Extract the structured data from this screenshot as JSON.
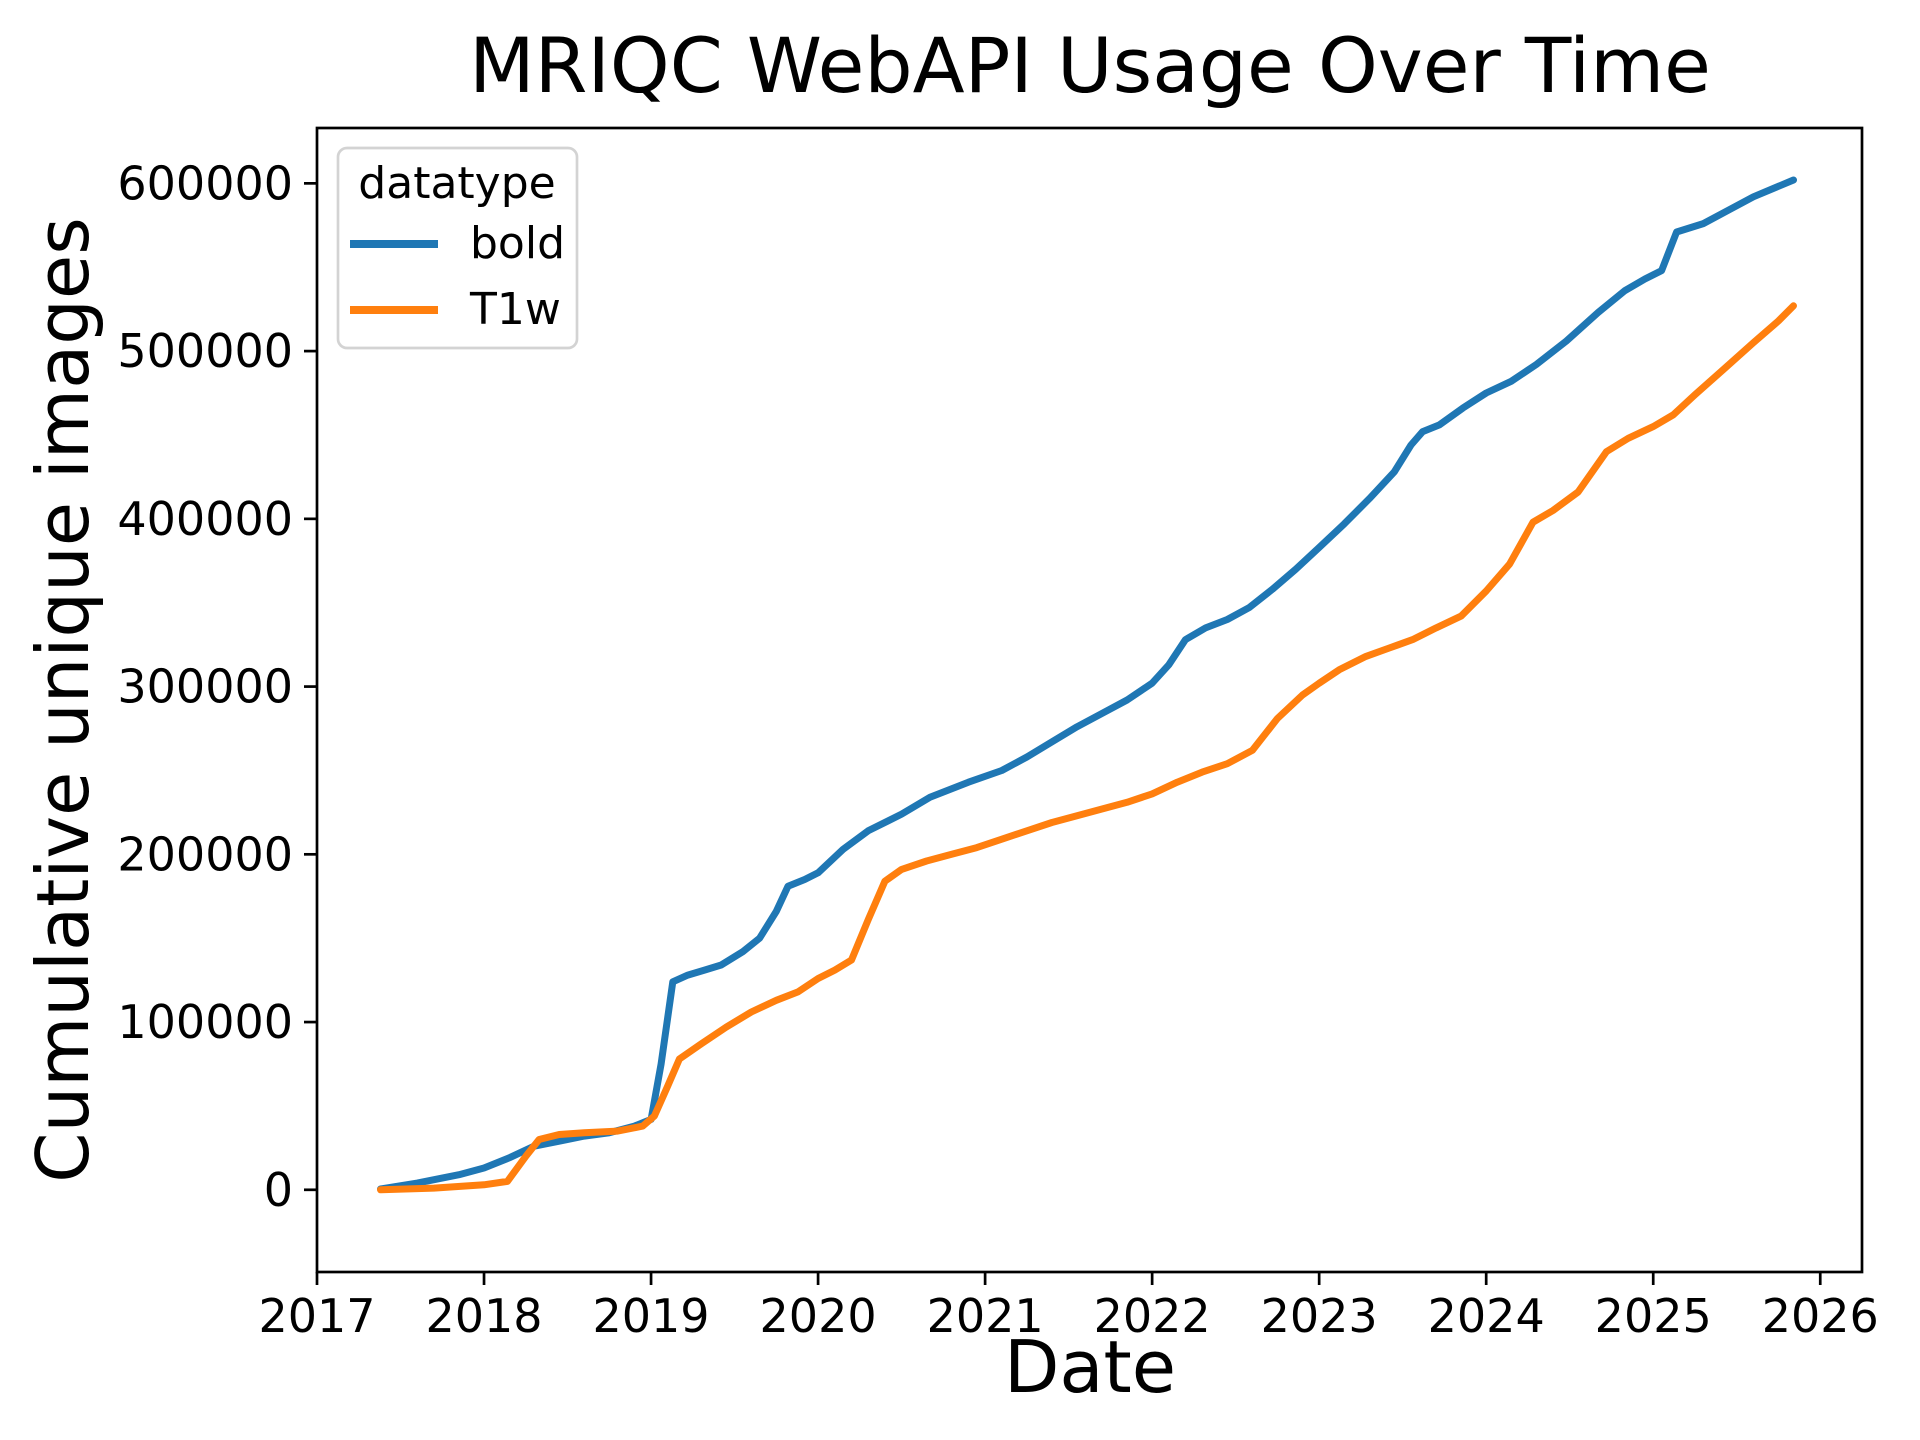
{
  "title": "MRIQC WebAPI Usage Over Time",
  "axes": {
    "xlabel": "Date",
    "ylabel": "Cumulative unique images"
  },
  "legend": {
    "title": "datatype",
    "position": "upper left",
    "entries": [
      {
        "label": "bold",
        "color": "#1f77b4"
      },
      {
        "label": "T1w",
        "color": "#ff7f0e"
      }
    ]
  },
  "chart_data": {
    "type": "line",
    "title": "MRIQC WebAPI Usage Over Time",
    "xlabel": "Date",
    "ylabel": "Cumulative unique images",
    "x_unit": "decimal_year",
    "xlim": [
      2017.0,
      2026.25
    ],
    "ylim": [
      -49000,
      633000
    ],
    "xticks": [
      2017,
      2018,
      2019,
      2020,
      2021,
      2022,
      2023,
      2024,
      2025,
      2026
    ],
    "yticks": [
      0,
      100000,
      200000,
      300000,
      400000,
      500000,
      600000
    ],
    "grid": false,
    "legend_title": "datatype",
    "legend_position": "upper left",
    "series": [
      {
        "name": "bold",
        "color": "#1f77b4",
        "points": [
          [
            2017.38,
            500
          ],
          [
            2017.6,
            4000
          ],
          [
            2017.85,
            9000
          ],
          [
            2018.0,
            13000
          ],
          [
            2018.15,
            19000
          ],
          [
            2018.3,
            26000
          ],
          [
            2018.45,
            29000
          ],
          [
            2018.6,
            32000
          ],
          [
            2018.75,
            34000
          ],
          [
            2018.9,
            38000
          ],
          [
            2019.0,
            42000
          ],
          [
            2019.06,
            75000
          ],
          [
            2019.13,
            124000
          ],
          [
            2019.22,
            128000
          ],
          [
            2019.32,
            131000
          ],
          [
            2019.42,
            134000
          ],
          [
            2019.55,
            142000
          ],
          [
            2019.65,
            150000
          ],
          [
            2019.75,
            166000
          ],
          [
            2019.82,
            181000
          ],
          [
            2019.92,
            185000
          ],
          [
            2020.0,
            189000
          ],
          [
            2020.15,
            203000
          ],
          [
            2020.3,
            214000
          ],
          [
            2020.5,
            224000
          ],
          [
            2020.67,
            234000
          ],
          [
            2020.9,
            243000
          ],
          [
            2021.1,
            250000
          ],
          [
            2021.25,
            258000
          ],
          [
            2021.4,
            267000
          ],
          [
            2021.55,
            276000
          ],
          [
            2021.7,
            284000
          ],
          [
            2021.85,
            292000
          ],
          [
            2022.0,
            302000
          ],
          [
            2022.1,
            313000
          ],
          [
            2022.2,
            328000
          ],
          [
            2022.32,
            335000
          ],
          [
            2022.45,
            340000
          ],
          [
            2022.58,
            347000
          ],
          [
            2022.72,
            358000
          ],
          [
            2022.86,
            370000
          ],
          [
            2023.0,
            383000
          ],
          [
            2023.15,
            397000
          ],
          [
            2023.3,
            412000
          ],
          [
            2023.45,
            428000
          ],
          [
            2023.55,
            444000
          ],
          [
            2023.62,
            452000
          ],
          [
            2023.72,
            456000
          ],
          [
            2023.86,
            466000
          ],
          [
            2024.0,
            475000
          ],
          [
            2024.15,
            482000
          ],
          [
            2024.3,
            492000
          ],
          [
            2024.48,
            506000
          ],
          [
            2024.67,
            523000
          ],
          [
            2024.83,
            536000
          ],
          [
            2024.95,
            543000
          ],
          [
            2025.05,
            548000
          ],
          [
            2025.14,
            571000
          ],
          [
            2025.3,
            576000
          ],
          [
            2025.45,
            584000
          ],
          [
            2025.6,
            592000
          ],
          [
            2025.72,
            597000
          ],
          [
            2025.84,
            602000
          ]
        ]
      },
      {
        "name": "T1w",
        "color": "#ff7f0e",
        "points": [
          [
            2017.38,
            0
          ],
          [
            2017.7,
            1000
          ],
          [
            2018.0,
            3000
          ],
          [
            2018.14,
            5000
          ],
          [
            2018.25,
            20000
          ],
          [
            2018.33,
            30000
          ],
          [
            2018.45,
            33000
          ],
          [
            2018.6,
            34000
          ],
          [
            2018.8,
            35000
          ],
          [
            2018.95,
            38000
          ],
          [
            2019.02,
            44000
          ],
          [
            2019.1,
            62000
          ],
          [
            2019.17,
            78000
          ],
          [
            2019.3,
            87000
          ],
          [
            2019.45,
            97000
          ],
          [
            2019.6,
            106000
          ],
          [
            2019.75,
            113000
          ],
          [
            2019.88,
            118000
          ],
          [
            2020.0,
            126000
          ],
          [
            2020.1,
            131000
          ],
          [
            2020.2,
            137000
          ],
          [
            2020.3,
            161000
          ],
          [
            2020.4,
            184000
          ],
          [
            2020.5,
            191000
          ],
          [
            2020.65,
            196000
          ],
          [
            2020.8,
            200000
          ],
          [
            2020.95,
            204000
          ],
          [
            2021.1,
            209000
          ],
          [
            2021.25,
            214000
          ],
          [
            2021.4,
            219000
          ],
          [
            2021.55,
            223000
          ],
          [
            2021.7,
            227000
          ],
          [
            2021.85,
            231000
          ],
          [
            2022.0,
            236000
          ],
          [
            2022.15,
            243000
          ],
          [
            2022.3,
            249000
          ],
          [
            2022.45,
            254000
          ],
          [
            2022.6,
            262000
          ],
          [
            2022.75,
            281000
          ],
          [
            2022.9,
            295000
          ],
          [
            2023.0,
            302000
          ],
          [
            2023.12,
            310000
          ],
          [
            2023.28,
            318000
          ],
          [
            2023.42,
            323000
          ],
          [
            2023.56,
            328000
          ],
          [
            2023.7,
            335000
          ],
          [
            2023.85,
            342000
          ],
          [
            2024.0,
            357000
          ],
          [
            2024.14,
            373000
          ],
          [
            2024.28,
            398000
          ],
          [
            2024.4,
            405000
          ],
          [
            2024.55,
            416000
          ],
          [
            2024.72,
            440000
          ],
          [
            2024.85,
            448000
          ],
          [
            2025.0,
            455000
          ],
          [
            2025.12,
            462000
          ],
          [
            2025.25,
            474000
          ],
          [
            2025.42,
            489000
          ],
          [
            2025.6,
            505000
          ],
          [
            2025.75,
            518000
          ],
          [
            2025.84,
            527000
          ]
        ]
      }
    ]
  }
}
